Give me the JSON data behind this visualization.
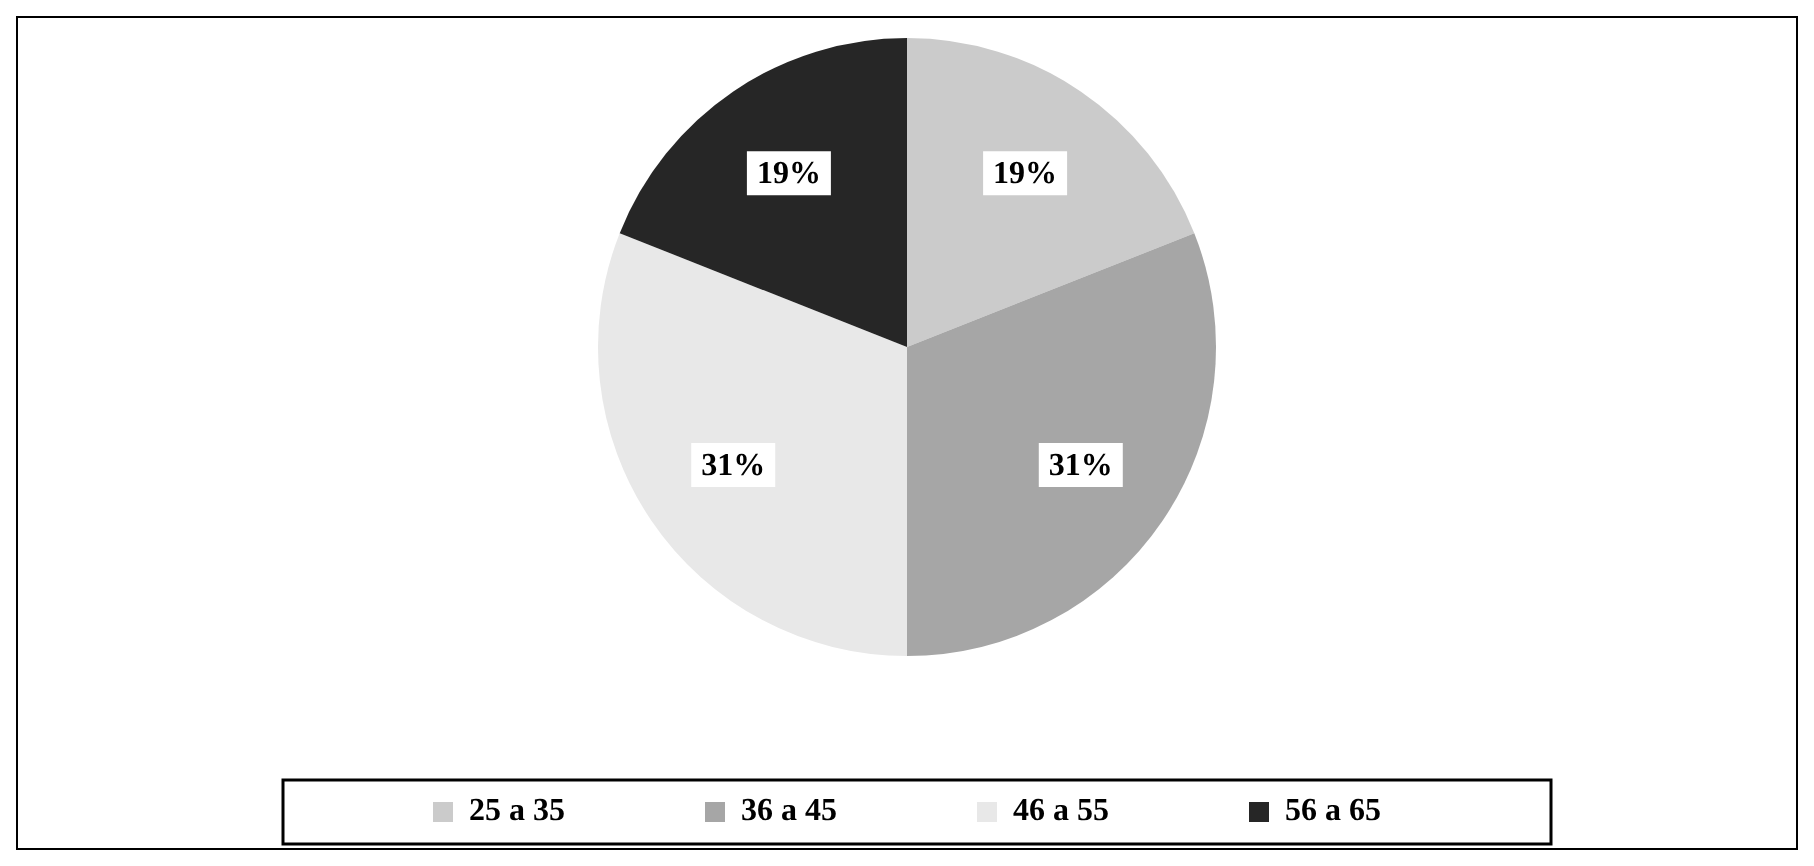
{
  "chart_data": {
    "type": "pie",
    "categories": [
      "25 a 35",
      "36 a 45",
      "46 a 55",
      "56 a 65"
    ],
    "values": [
      19,
      31,
      31,
      19
    ],
    "colors": [
      "#cbcbcb",
      "#a6a6a6",
      "#e8e8e8",
      "#262626"
    ],
    "value_labels": [
      "19%",
      "31%",
      "31%",
      "19%"
    ],
    "legend": "bottom"
  }
}
